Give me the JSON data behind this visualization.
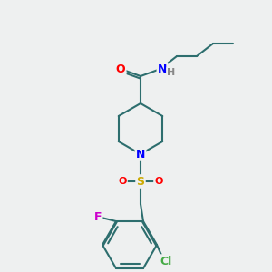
{
  "bg_color": "#eef0f0",
  "bond_color": "#2d6e6e",
  "atom_colors": {
    "O": "#ff0000",
    "N": "#0000ff",
    "S": "#ccaa00",
    "F": "#cc00cc",
    "Cl": "#44aa44",
    "H": "#888888"
  },
  "bond_width": 1.5,
  "font_size": 9
}
